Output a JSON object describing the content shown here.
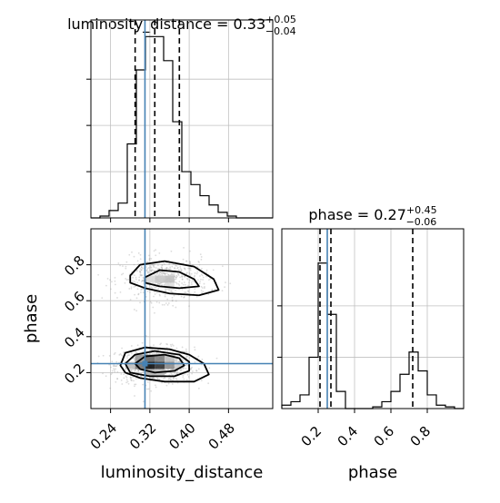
{
  "chart_data": {
    "type": "corner",
    "parameters": [
      "luminosity_distance",
      "phase"
    ],
    "x_labels": [
      "luminosity_distance",
      "phase"
    ],
    "y_labels": [
      "",
      "phase"
    ],
    "grid": true,
    "truth": {
      "luminosity_distance": 0.31,
      "phase": 0.25,
      "color": "#4682b4"
    },
    "titles": [
      {
        "param": "luminosity_distance",
        "prefix": "luminosity_distance = 0.33",
        "plus": "+0.05",
        "minus": "−0.04"
      },
      {
        "param": "phase",
        "prefix": "phase = 0.27",
        "plus": "+0.45",
        "minus": "−0.06"
      }
    ],
    "marginals": [
      {
        "param": "luminosity_distance",
        "xlim": [
          0.2,
          0.57
        ],
        "ylim": [
          0,
          1.07
        ],
        "xticks": [
          0.24,
          0.32,
          0.4,
          0.48
        ],
        "xtick_labels": [
          "0.24",
          "0.32",
          "0.40",
          "0.48"
        ],
        "yticks": [
          0.25,
          0.5,
          0.75
        ],
        "quantile_lines": [
          0.29,
          0.33,
          0.38
        ],
        "bin_edges": [
          0.2,
          0.2185,
          0.237,
          0.2555,
          0.274,
          0.2925,
          0.311,
          0.3295,
          0.348,
          0.3665,
          0.385,
          0.4035,
          0.422,
          0.4405,
          0.459,
          0.4775,
          0.496,
          0.5145,
          0.533,
          0.5515,
          0.57
        ],
        "counts": [
          0,
          0.01,
          0.04,
          0.08,
          0.4,
          0.8,
          0.98,
          0.98,
          0.85,
          0.52,
          0.25,
          0.18,
          0.12,
          0.07,
          0.03,
          0.01,
          0,
          0,
          0,
          0
        ]
      },
      {
        "param": "phase",
        "xlim": [
          0,
          1
        ],
        "ylim": [
          0,
          1.05
        ],
        "xticks": [
          0.2,
          0.4,
          0.6,
          0.8
        ],
        "xtick_labels": [
          "0.2",
          "0.4",
          "0.6",
          "0.8"
        ],
        "yticks": [
          0.3,
          0.6
        ],
        "quantile_lines": [
          0.21,
          0.27,
          0.72
        ],
        "bin_edges": [
          0,
          0.05,
          0.1,
          0.15,
          0.2,
          0.25,
          0.3,
          0.35,
          0.4,
          0.45,
          0.5,
          0.55,
          0.6,
          0.65,
          0.7,
          0.75,
          0.8,
          0.85,
          0.9,
          0.95,
          1.0
        ],
        "counts": [
          0.02,
          0.04,
          0.08,
          0.3,
          0.85,
          0.55,
          0.1,
          0.0,
          0.0,
          0.0,
          0.01,
          0.04,
          0.1,
          0.2,
          0.33,
          0.22,
          0.08,
          0.02,
          0.01,
          0.0
        ]
      }
    ],
    "joint": {
      "x_param": "luminosity_distance",
      "y_param": "phase",
      "xlim": [
        0.2,
        0.57
      ],
      "ylim": [
        0,
        1.0
      ],
      "xticks": [
        0.24,
        0.32,
        0.4,
        0.48
      ],
      "xtick_labels": [
        "0.24",
        "0.32",
        "0.40",
        "0.48"
      ],
      "yticks": [
        0.2,
        0.4,
        0.6,
        0.8
      ],
      "ytick_labels": [
        "0.2",
        "0.4",
        "0.6",
        "0.8"
      ],
      "modes": [
        {
          "x": 0.33,
          "y": 0.24,
          "sx": 0.04,
          "sy": 0.05,
          "weight": 0.62
        },
        {
          "x": 0.35,
          "y": 0.72,
          "sx": 0.045,
          "sy": 0.06,
          "weight": 0.38
        }
      ],
      "density_cells": [
        {
          "x": 0.3,
          "y": 0.24,
          "level": 0.55
        },
        {
          "x": 0.32,
          "y": 0.24,
          "level": 0.95
        },
        {
          "x": 0.34,
          "y": 0.24,
          "level": 0.8
        },
        {
          "x": 0.36,
          "y": 0.24,
          "level": 0.45
        },
        {
          "x": 0.3,
          "y": 0.28,
          "level": 0.4
        },
        {
          "x": 0.32,
          "y": 0.28,
          "level": 0.6
        },
        {
          "x": 0.34,
          "y": 0.28,
          "level": 0.5
        },
        {
          "x": 0.36,
          "y": 0.28,
          "level": 0.25
        },
        {
          "x": 0.28,
          "y": 0.24,
          "level": 0.25
        },
        {
          "x": 0.38,
          "y": 0.24,
          "level": 0.2
        },
        {
          "x": 0.32,
          "y": 0.2,
          "level": 0.3
        },
        {
          "x": 0.34,
          "y": 0.2,
          "level": 0.25
        },
        {
          "x": 0.34,
          "y": 0.72,
          "level": 0.22
        },
        {
          "x": 0.36,
          "y": 0.72,
          "level": 0.25
        },
        {
          "x": 0.32,
          "y": 0.72,
          "level": 0.15
        },
        {
          "x": 0.36,
          "y": 0.68,
          "level": 0.12
        }
      ],
      "contours": [
        {
          "level": "outer",
          "points": [
            [
              0.26,
              0.24
            ],
            [
              0.27,
              0.31
            ],
            [
              0.31,
              0.34
            ],
            [
              0.36,
              0.33
            ],
            [
              0.4,
              0.3
            ],
            [
              0.43,
              0.25
            ],
            [
              0.44,
              0.19
            ],
            [
              0.41,
              0.15
            ],
            [
              0.35,
              0.15
            ],
            [
              0.3,
              0.17
            ],
            [
              0.27,
              0.2
            ]
          ]
        },
        {
          "level": "middle",
          "points": [
            [
              0.27,
              0.25
            ],
            [
              0.29,
              0.3
            ],
            [
              0.33,
              0.32
            ],
            [
              0.38,
              0.3
            ],
            [
              0.4,
              0.26
            ],
            [
              0.4,
              0.21
            ],
            [
              0.37,
              0.18
            ],
            [
              0.32,
              0.18
            ],
            [
              0.28,
              0.2
            ]
          ]
        },
        {
          "level": "inner",
          "points": [
            [
              0.29,
              0.25
            ],
            [
              0.31,
              0.29
            ],
            [
              0.35,
              0.3
            ],
            [
              0.38,
              0.28
            ],
            [
              0.39,
              0.24
            ],
            [
              0.37,
              0.21
            ],
            [
              0.33,
              0.2
            ],
            [
              0.3,
              0.22
            ]
          ]
        },
        {
          "level": "outer",
          "points": [
            [
              0.28,
              0.74
            ],
            [
              0.3,
              0.8
            ],
            [
              0.35,
              0.82
            ],
            [
              0.41,
              0.79
            ],
            [
              0.45,
              0.72
            ],
            [
              0.46,
              0.66
            ],
            [
              0.42,
              0.63
            ],
            [
              0.36,
              0.64
            ],
            [
              0.31,
              0.67
            ],
            [
              0.28,
              0.7
            ]
          ]
        },
        {
          "level": "inner",
          "points": [
            [
              0.31,
              0.73
            ],
            [
              0.34,
              0.77
            ],
            [
              0.38,
              0.76
            ],
            [
              0.41,
              0.72
            ],
            [
              0.42,
              0.68
            ],
            [
              0.38,
              0.67
            ],
            [
              0.34,
              0.68
            ],
            [
              0.31,
              0.7
            ]
          ]
        }
      ]
    }
  }
}
